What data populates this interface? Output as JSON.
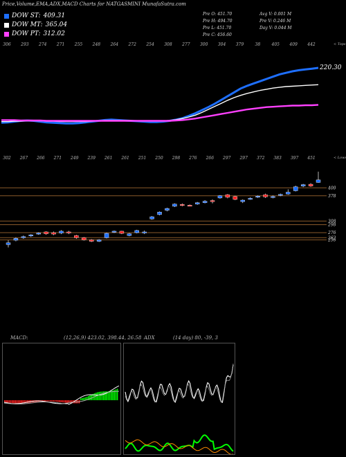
{
  "header": {
    "title": "Price,Volume,EMA,ADX,MACD Charts for NATGASMINI MunafaSutra.com"
  },
  "legend": [
    {
      "label": "DOW ST:",
      "value": "409.31",
      "color": "#1e6fff"
    },
    {
      "label": "DOW MT:",
      "value": "365.04",
      "color": "#ffffff"
    },
    {
      "label": "DOW PT:",
      "value": "312.02",
      "color": "#ff40ff"
    }
  ],
  "stats": {
    "col1": [
      "Pre O: 451.70",
      "Pre H: 494.70",
      "Pre L: 451.70",
      "Pre C: 456.60"
    ],
    "col2": [
      "Avg V: 0.001 M",
      "Pre V: 0.246 M",
      "Day V: 0.044 M"
    ]
  },
  "ema_panel": {
    "corner_label": "< Tops",
    "top_labels": [
      "306",
      "293",
      "274",
      "271",
      "255",
      "248",
      "264",
      "272",
      "254",
      "308",
      "277",
      "300",
      "304",
      "379",
      "38",
      "405",
      "409",
      "442"
    ],
    "value_label": "220.30"
  },
  "price_panel": {
    "corner_label": "< Lows",
    "top_labels": [
      "302",
      "267",
      "266",
      "271",
      "249",
      "239",
      "261",
      "261",
      "251",
      "250",
      "298",
      "276",
      "266",
      "297",
      "297",
      "372",
      "383",
      "397",
      "451"
    ],
    "levels": [
      "400",
      "378",
      "308",
      "298",
      "276",
      "262",
      "256"
    ]
  },
  "macd_panel": {
    "label": "MACD:",
    "params": "(12,26,9) 423.02, 398.44, 26.58"
  },
  "adx_panel": {
    "label": "ADX",
    "params": "(14 day) 80, -39, 3"
  },
  "colors": {
    "up": "#1e6fff",
    "down": "#ff2020",
    "macd_hist_pos": "#00ff00",
    "macd_hist_neg": "#ff2020",
    "adx_main": "#00ff00",
    "adx_minus": "#ff8c00"
  },
  "chart_data": [
    {
      "type": "line",
      "title": "EMA",
      "x": [
        1,
        2,
        3,
        4,
        5,
        6,
        7,
        8,
        9,
        10,
        11,
        12,
        13,
        14,
        15,
        16,
        17,
        18,
        19,
        20,
        21,
        22,
        23,
        24,
        25,
        26,
        27,
        28,
        29,
        30,
        31,
        32,
        33,
        34,
        35,
        36,
        37,
        38,
        39,
        40,
        41,
        42,
        43,
        44,
        45,
        46,
        47,
        48,
        49,
        50
      ],
      "series": [
        {
          "name": "DOW ST",
          "values": [
            265,
            266,
            268,
            270,
            271,
            270,
            268,
            266,
            265,
            264,
            263,
            263,
            264,
            266,
            268,
            270,
            272,
            273,
            272,
            271,
            270,
            269,
            268,
            267,
            267,
            268,
            270,
            273,
            277,
            283,
            290,
            298,
            306,
            315,
            325,
            335,
            345,
            355,
            362,
            368,
            374,
            380,
            386,
            392,
            396,
            400,
            403,
            405,
            407,
            409
          ]
        },
        {
          "name": "DOW MT",
          "values": [
            268,
            268,
            269,
            269,
            270,
            270,
            270,
            269,
            269,
            268,
            268,
            268,
            268,
            268,
            269,
            270,
            271,
            271,
            271,
            271,
            271,
            270,
            270,
            270,
            270,
            270,
            271,
            273,
            276,
            280,
            285,
            292,
            300,
            308,
            316,
            324,
            331,
            337,
            342,
            346,
            350,
            353,
            356,
            358,
            360,
            361,
            362,
            363,
            364,
            365
          ]
        },
        {
          "name": "DOW PT",
          "values": [
            272,
            272,
            272,
            271,
            271,
            271,
            271,
            270,
            270,
            270,
            270,
            270,
            270,
            270,
            270,
            270,
            270,
            270,
            270,
            270,
            270,
            270,
            270,
            270,
            270,
            270,
            270,
            271,
            272,
            274,
            276,
            279,
            282,
            285,
            288,
            291,
            294,
            297,
            300,
            302,
            304,
            306,
            307,
            308,
            309,
            310,
            310,
            311,
            311,
            312
          ]
        }
      ]
    },
    {
      "type": "bar",
      "title": "Price",
      "candles": [
        {
          "o": 243,
          "c": 248,
          "h": 255,
          "l": 235
        },
        {
          "o": 255,
          "c": 260,
          "h": 263,
          "l": 252
        },
        {
          "o": 262,
          "c": 265,
          "h": 268,
          "l": 259
        },
        {
          "o": 267,
          "c": 270,
          "h": 272,
          "l": 264
        },
        {
          "o": 272,
          "c": 275,
          "h": 277,
          "l": 270
        },
        {
          "o": 278,
          "c": 273,
          "h": 280,
          "l": 270
        },
        {
          "o": 276,
          "c": 272,
          "h": 279,
          "l": 269
        },
        {
          "o": 275,
          "c": 280,
          "h": 283,
          "l": 272
        },
        {
          "o": 278,
          "c": 275,
          "h": 281,
          "l": 272
        },
        {
          "o": 268,
          "c": 262,
          "h": 270,
          "l": 259
        },
        {
          "o": 262,
          "c": 256,
          "h": 264,
          "l": 254
        },
        {
          "o": 256,
          "c": 252,
          "h": 258,
          "l": 250
        },
        {
          "o": 252,
          "c": 256,
          "h": 258,
          "l": 250
        },
        {
          "o": 262,
          "c": 274,
          "h": 276,
          "l": 260
        },
        {
          "o": 277,
          "c": 280,
          "h": 282,
          "l": 275
        },
        {
          "o": 280,
          "c": 274,
          "h": 281,
          "l": 272
        },
        {
          "o": 268,
          "c": 273,
          "h": 275,
          "l": 266
        },
        {
          "o": 276,
          "c": 282,
          "h": 284,
          "l": 274
        },
        {
          "o": 277,
          "c": 278,
          "h": 282,
          "l": 272
        },
        {
          "o": 314,
          "c": 320,
          "h": 322,
          "l": 312
        },
        {
          "o": 326,
          "c": 333,
          "h": 335,
          "l": 324
        },
        {
          "o": 338,
          "c": 343,
          "h": 345,
          "l": 335
        },
        {
          "o": 349,
          "c": 355,
          "h": 357,
          "l": 347
        },
        {
          "o": 354,
          "c": 351,
          "h": 357,
          "l": 349
        },
        {
          "o": 352,
          "c": 351,
          "h": 354,
          "l": 349
        },
        {
          "o": 355,
          "c": 359,
          "h": 361,
          "l": 353
        },
        {
          "o": 359,
          "c": 363,
          "h": 366,
          "l": 357
        },
        {
          "o": 365,
          "c": 362,
          "h": 368,
          "l": 357
        },
        {
          "o": 372,
          "c": 378,
          "h": 380,
          "l": 370
        },
        {
          "o": 381,
          "c": 374,
          "h": 383,
          "l": 371
        },
        {
          "o": 376,
          "c": 368,
          "h": 378,
          "l": 366
        },
        {
          "o": 362,
          "c": 366,
          "h": 368,
          "l": 358
        },
        {
          "o": 370,
          "c": 371,
          "h": 374,
          "l": 367
        },
        {
          "o": 374,
          "c": 377,
          "h": 379,
          "l": 372
        },
        {
          "o": 381,
          "c": 375,
          "h": 384,
          "l": 372
        },
        {
          "o": 374,
          "c": 376,
          "h": 379,
          "l": 371
        },
        {
          "o": 380,
          "c": 382,
          "h": 384,
          "l": 377
        },
        {
          "o": 383,
          "c": 388,
          "h": 396,
          "l": 381
        },
        {
          "o": 392,
          "c": 403,
          "h": 406,
          "l": 390
        },
        {
          "o": 405,
          "c": 409,
          "h": 411,
          "l": 402
        },
        {
          "o": 410,
          "c": 405,
          "h": 413,
          "l": 403
        },
        {
          "o": 415,
          "c": 422,
          "h": 445,
          "l": 414
        }
      ]
    },
    {
      "type": "line",
      "title": "MACD",
      "params": [
        12,
        26,
        9
      ],
      "values": [
        423.02,
        398.44,
        26.58
      ]
    },
    {
      "type": "line",
      "title": "ADX",
      "params": [
        14
      ],
      "values": [
        80,
        -39,
        3
      ]
    }
  ]
}
